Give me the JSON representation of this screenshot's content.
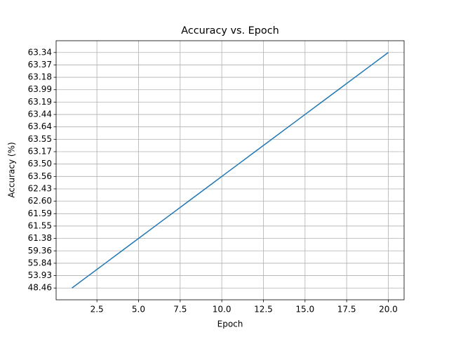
{
  "chart_data": {
    "type": "line",
    "title": "Accuracy vs. Epoch",
    "x_label": "Epoch",
    "y_label": "Accuracy (%)",
    "x": [
      1,
      2,
      3,
      4,
      5,
      6,
      7,
      8,
      9,
      10,
      11,
      12,
      13,
      14,
      15,
      16,
      17,
      18,
      19,
      20
    ],
    "series": [
      {
        "name": "Accuracy",
        "color": "#1f77b4",
        "values": [
          48.46,
          53.93,
          55.84,
          59.36,
          61.38,
          61.55,
          61.59,
          62.6,
          62.43,
          63.56,
          63.5,
          63.17,
          63.55,
          63.64,
          63.44,
          63.19,
          63.99,
          63.18,
          63.37,
          63.34
        ]
      }
    ],
    "xlim": [
      0.05,
      20.95
    ],
    "xticks": [
      2.5,
      {
        "value": 5,
        "label": "5.0"
      },
      7.5,
      {
        "value": 10,
        "label": "10.0"
      },
      12.5,
      {
        "value": 15,
        "label": "15.0"
      },
      17.5,
      {
        "value": 20,
        "label": "20.0"
      }
    ],
    "y_scale": "category",
    "yticks": [
      48.46,
      53.93,
      55.84,
      59.36,
      61.38,
      61.55,
      61.59,
      {
        "value": 62.6,
        "label": "62.60"
      },
      62.43,
      63.56,
      {
        "value": 63.5,
        "label": "63.50"
      },
      63.17,
      63.55,
      63.64,
      63.44,
      63.19,
      63.99,
      63.18,
      63.37,
      63.34
    ],
    "grid": true
  }
}
